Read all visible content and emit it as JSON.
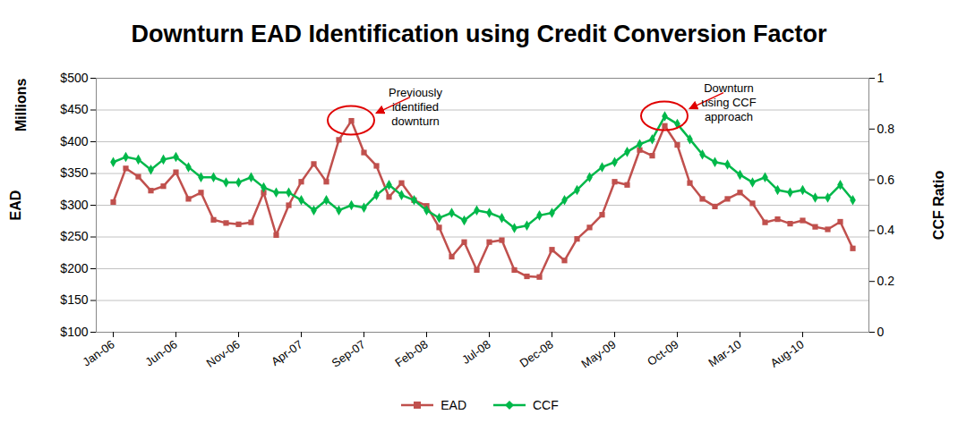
{
  "chart_data": {
    "type": "line",
    "title": "Downturn EAD Identification using Credit Conversion Factor",
    "ylabel": "EAD",
    "ylabel_unit": "Millions",
    "y2label": "CCF Ratio",
    "categories": [
      "Jan-06",
      null,
      null,
      null,
      null,
      "Jun-06",
      null,
      null,
      null,
      null,
      "Nov-06",
      null,
      null,
      null,
      null,
      "Apr-07",
      null,
      null,
      null,
      null,
      "Sep-07",
      null,
      null,
      null,
      null,
      "Feb-08",
      null,
      null,
      null,
      null,
      "Jul-08",
      null,
      null,
      null,
      null,
      "Dec-08",
      null,
      null,
      null,
      null,
      "May-09",
      null,
      null,
      null,
      null,
      "Oct-09",
      null,
      null,
      null,
      null,
      "Mar-10",
      null,
      null,
      null,
      null,
      "Aug-10",
      null,
      null,
      null,
      null
    ],
    "series": [
      {
        "name": "EAD",
        "color": "#c0504d",
        "marker": "square",
        "values": [
          305,
          358,
          345,
          323,
          330,
          352,
          310,
          320,
          277,
          272,
          270,
          273,
          320,
          253,
          300,
          337,
          365,
          337,
          403,
          433,
          383,
          362,
          313,
          335,
          308,
          299,
          265,
          219,
          242,
          198,
          242,
          245,
          198,
          188,
          187,
          230,
          213,
          247,
          265,
          285,
          337,
          332,
          387,
          378,
          425,
          395,
          335,
          310,
          298,
          310,
          320,
          303,
          273,
          278,
          271,
          276,
          266,
          262,
          274,
          232
        ]
      },
      {
        "name": "CCF",
        "color": "#00b84a",
        "marker": "diamond",
        "axis": "y2",
        "values": [
          0.67,
          0.69,
          0.68,
          0.64,
          0.68,
          0.69,
          0.65,
          0.61,
          0.61,
          0.59,
          0.59,
          0.61,
          0.57,
          0.55,
          0.55,
          0.52,
          0.48,
          0.52,
          0.48,
          0.5,
          0.49,
          0.54,
          0.58,
          0.54,
          0.52,
          0.48,
          0.45,
          0.47,
          0.44,
          0.48,
          0.47,
          0.45,
          0.41,
          0.42,
          0.46,
          0.47,
          0.52,
          0.56,
          0.61,
          0.65,
          0.67,
          0.71,
          0.74,
          0.76,
          0.85,
          0.82,
          0.76,
          0.7,
          0.67,
          0.66,
          0.62,
          0.59,
          0.61,
          0.56,
          0.55,
          0.56,
          0.53,
          0.53,
          0.58,
          0.52
        ]
      }
    ],
    "ylim": [
      100,
      500
    ],
    "yticks": [
      {
        "value": 100,
        "label": "$100"
      },
      {
        "value": 150,
        "label": "$150"
      },
      {
        "value": 200,
        "label": "$200"
      },
      {
        "value": 250,
        "label": "$250"
      },
      {
        "value": 300,
        "label": "$300"
      },
      {
        "value": 350,
        "label": "$350"
      },
      {
        "value": 400,
        "label": "$400"
      },
      {
        "value": 450,
        "label": "$450"
      },
      {
        "value": 500,
        "label": "$500"
      }
    ],
    "y2lim": [
      0,
      1
    ],
    "y2ticks": [
      0,
      0.2,
      0.4,
      0.6,
      0.8,
      1
    ],
    "grid": true,
    "legend": "bottom",
    "annotations": [
      {
        "text": "Previously\nidentified\ndownturn",
        "series": "EAD"
      },
      {
        "text": "Downturn\nusing CCF\napproach",
        "series": "CCF"
      }
    ]
  }
}
